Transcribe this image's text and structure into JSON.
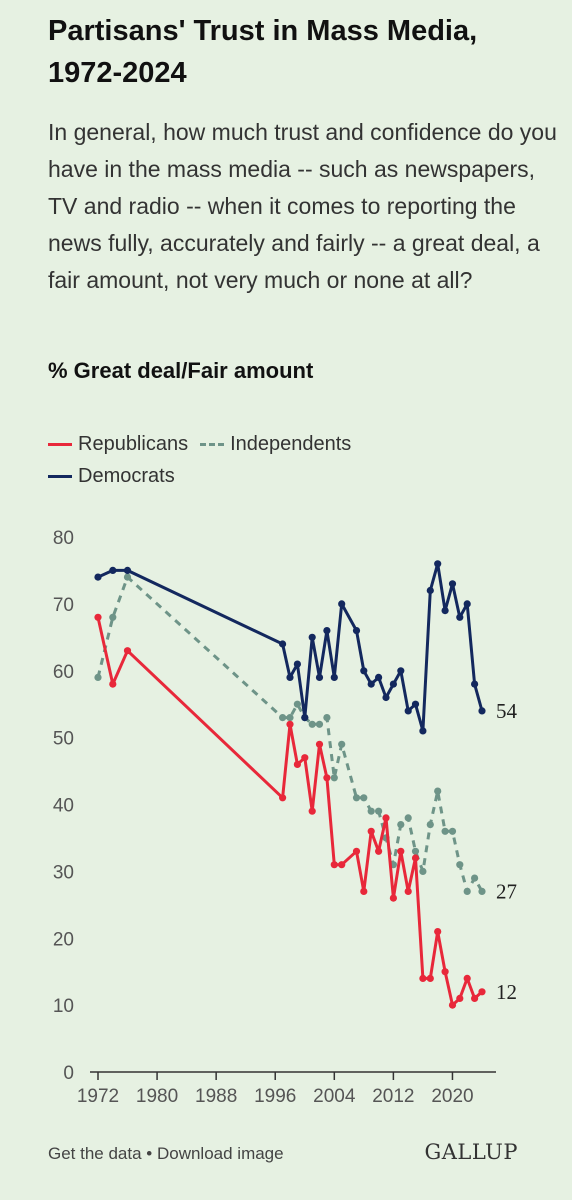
{
  "title": "Partisans' Trust in Mass Media, 1972-2024",
  "subtitle": "In general, how much trust and confidence do you have in the mass media -- such as newspapers, TV and radio -- when it comes to reporting the news fully, accurately and fairly -- a great deal, a fair amount, not very much or none at all?",
  "measure_label": "% Great deal/Fair amount",
  "footer": {
    "links": "Get the data • Download image",
    "logo": "GALLUP"
  },
  "colors": {
    "republicans": "#e8283a",
    "independents": "#6e9488",
    "democrats": "#13285e",
    "axis": "#555555",
    "grid": "#9aa79a"
  },
  "chart_data": {
    "type": "line",
    "ylim": [
      0,
      80
    ],
    "xlim": [
      1972,
      2024
    ],
    "y_ticks": [
      "0",
      "10",
      "20",
      "30",
      "40",
      "50",
      "60",
      "70",
      "80"
    ],
    "x_ticks": [
      "1972",
      "1980",
      "1988",
      "1996",
      "2004",
      "2012",
      "2020"
    ],
    "legend_position": "top-left",
    "grid": false,
    "series": [
      {
        "name": "Republicans",
        "style": "solid",
        "end_label": "12",
        "x": [
          1972,
          1974,
          1976,
          1997,
          1998,
          1999,
          2000,
          2001,
          2002,
          2003,
          2004,
          2005,
          2007,
          2008,
          2009,
          2010,
          2011,
          2012,
          2013,
          2014,
          2015,
          2016,
          2017,
          2018,
          2019,
          2020,
          2021,
          2022,
          2023,
          2024
        ],
        "values": [
          68,
          58,
          63,
          41,
          52,
          46,
          47,
          39,
          49,
          44,
          31,
          31,
          33,
          27,
          36,
          33,
          38,
          26,
          33,
          27,
          32,
          14,
          14,
          21,
          15,
          10,
          11,
          14,
          11,
          12
        ]
      },
      {
        "name": "Independents",
        "style": "dashed",
        "end_label": "27",
        "x": [
          1972,
          1974,
          1976,
          1997,
          1998,
          1999,
          2000,
          2001,
          2002,
          2003,
          2004,
          2005,
          2007,
          2008,
          2009,
          2010,
          2011,
          2012,
          2013,
          2014,
          2015,
          2016,
          2017,
          2018,
          2019,
          2020,
          2021,
          2022,
          2023,
          2024
        ],
        "values": [
          59,
          68,
          74,
          53,
          53,
          55,
          53,
          52,
          52,
          53,
          44,
          49,
          41,
          41,
          39,
          39,
          35,
          31,
          37,
          38,
          33,
          30,
          37,
          42,
          36,
          36,
          31,
          27,
          29,
          27
        ]
      },
      {
        "name": "Democrats",
        "style": "solid",
        "end_label": "54",
        "x": [
          1972,
          1974,
          1976,
          1997,
          1998,
          1999,
          2000,
          2001,
          2002,
          2003,
          2004,
          2005,
          2007,
          2008,
          2009,
          2010,
          2011,
          2012,
          2013,
          2014,
          2015,
          2016,
          2017,
          2018,
          2019,
          2020,
          2021,
          2022,
          2023,
          2024
        ],
        "values": [
          74,
          75,
          75,
          64,
          59,
          61,
          53,
          65,
          59,
          66,
          59,
          70,
          66,
          60,
          58,
          59,
          56,
          58,
          60,
          54,
          55,
          51,
          72,
          76,
          69,
          73,
          68,
          70,
          58,
          54
        ]
      }
    ]
  }
}
